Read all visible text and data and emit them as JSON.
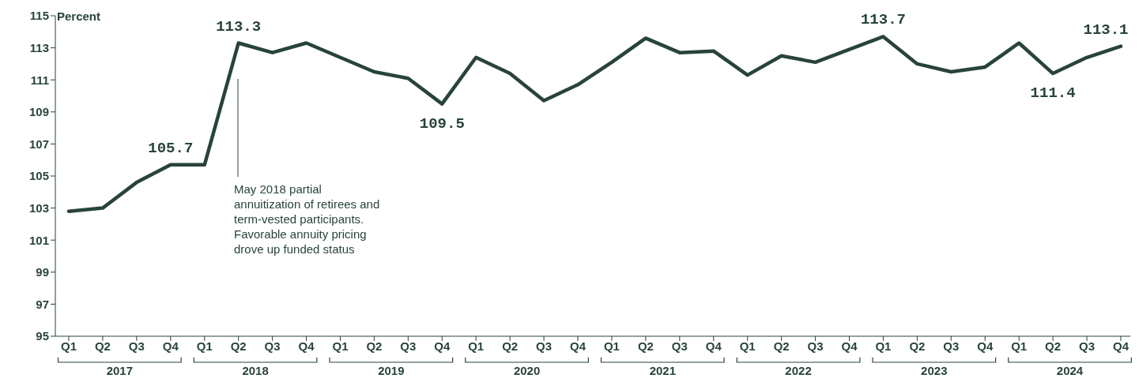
{
  "chart_data": {
    "type": "line",
    "ylabel": "Percent",
    "categories": [
      "Q1",
      "Q2",
      "Q3",
      "Q4",
      "Q1",
      "Q2",
      "Q3",
      "Q4",
      "Q1",
      "Q2",
      "Q3",
      "Q4",
      "Q1",
      "Q2",
      "Q3",
      "Q4",
      "Q1",
      "Q2",
      "Q3",
      "Q4",
      "Q1",
      "Q2",
      "Q3",
      "Q4",
      "Q1",
      "Q2",
      "Q3",
      "Q4",
      "Q1",
      "Q2",
      "Q3",
      "Q4"
    ],
    "series": [
      {
        "color": "#28443a",
        "values": [
          102.8,
          103.0,
          104.6,
          105.7,
          105.7,
          113.3,
          112.7,
          113.3,
          null,
          111.5,
          111.1,
          109.5,
          112.4,
          111.4,
          109.7,
          110.7,
          112.1,
          113.6,
          112.7,
          112.8,
          111.3,
          112.5,
          112.1,
          null,
          113.7,
          112.0,
          111.5,
          111.8,
          113.3,
          111.4,
          112.4,
          113.1
        ],
        "value_labels": [
          null,
          null,
          null,
          "105.7",
          null,
          "113.3",
          null,
          null,
          null,
          null,
          null,
          "109.5",
          null,
          null,
          null,
          null,
          null,
          null,
          null,
          null,
          null,
          null,
          null,
          null,
          "113.7",
          null,
          null,
          null,
          null,
          "111.4",
          null,
          "113.1"
        ]
      }
    ],
    "ylim": [
      95,
      115
    ],
    "yticks": [
      95,
      97,
      99,
      101,
      103,
      105,
      107,
      109,
      111,
      113,
      115
    ],
    "annotations": [
      "2017",
      "2018",
      "2019",
      "2020",
      "2021",
      "2022",
      "2023",
      "2024",
      "May 2018 partial annuitization of retirees and term-vested participants. Favorable annuity pricing drove up funded status"
    ],
    "grid": false,
    "legend": false,
    "marker": "none",
    "line_style": "solid"
  }
}
